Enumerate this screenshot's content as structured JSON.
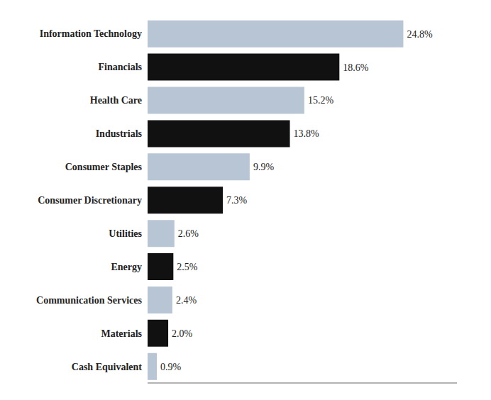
{
  "chart_data": {
    "type": "bar",
    "orientation": "horizontal",
    "categories": [
      "Cash Equivalent",
      "Materials",
      "Communication Services",
      "Energy",
      "Utilities",
      "Consumer Discretionary",
      "Consumer Staples",
      "Industrials",
      "Health Care",
      "Financials",
      "Information Technology"
    ],
    "values": [
      0.9,
      2.0,
      2.4,
      2.5,
      2.6,
      7.3,
      9.9,
      13.8,
      15.2,
      18.6,
      24.8
    ],
    "value_labels": [
      "0.9%",
      "2.0%",
      "2.4%",
      "2.5%",
      "2.6%",
      "7.3%",
      "9.9%",
      "13.8%",
      "15.2%",
      "18.6%",
      "24.8%"
    ],
    "colors": [
      "#b8c5d4",
      "#111111",
      "#b8c5d4",
      "#111111",
      "#b8c5d4",
      "#111111",
      "#b8c5d4",
      "#111111",
      "#b8c5d4",
      "#111111",
      "#b8c5d4"
    ],
    "xlim": [
      0,
      30
    ],
    "data_labels": true,
    "tick_labels": "y",
    "grid": false
  }
}
